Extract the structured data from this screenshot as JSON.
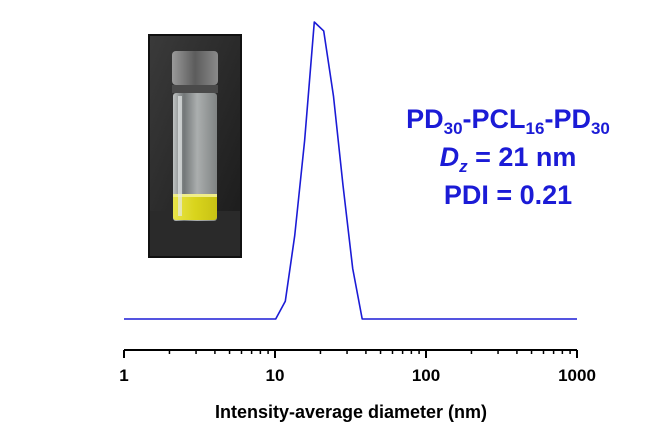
{
  "chart_data": {
    "type": "line",
    "xscale": "log",
    "xlim": [
      1,
      1000
    ],
    "xlabel": "Intensity-average diameter (nm)",
    "ylabel": "",
    "xticks": [
      {
        "value": 1,
        "label": "1"
      },
      {
        "value": 10,
        "label": "10"
      },
      {
        "value": 100,
        "label": "100"
      },
      {
        "value": 1000,
        "label": "1000"
      }
    ],
    "grid": false,
    "series": [
      {
        "color": "#1b1bd6",
        "x": [
          1,
          10.1,
          11.7,
          13.5,
          15.7,
          18.2,
          21.0,
          24.4,
          28.2,
          32.7,
          37.8,
          1000
        ],
        "y": [
          0,
          0,
          6.0,
          28.0,
          60.0,
          100.0,
          97.0,
          75.0,
          45.0,
          17.0,
          0,
          0
        ]
      }
    ]
  },
  "annotation": {
    "line1": {
      "a": "PD",
      "a_sub": "30",
      "b": "-PCL",
      "b_sub": "16",
      "c": "-PD",
      "c_sub": "30"
    },
    "line2": {
      "sym": "D",
      "sym_sub": "z",
      "rest": " = 21 nm"
    },
    "line3": "PDI = 0.21"
  },
  "inset": {
    "icon": "vial-photo-icon",
    "colors": {
      "liquid": "#d9d41c",
      "cap": "#6e6e6e"
    }
  }
}
